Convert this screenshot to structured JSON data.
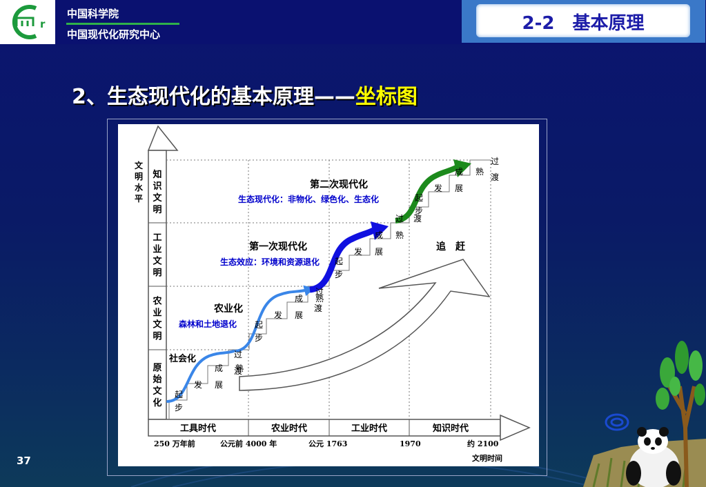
{
  "header": {
    "org_line1": "中国科学院",
    "org_line2": "中国现代化研究中心",
    "logo_letter": "r",
    "section": "2-2　基本原理"
  },
  "title": {
    "main": "2、生态现代化的基本原理——",
    "sub": "坐标图"
  },
  "diagram": {
    "y_axis_label": "文明水平",
    "x_axis_label": "文明时间",
    "levels": [
      "原始文化",
      "农业文明",
      "工业文明",
      "知识文明"
    ],
    "eras": [
      "工具时代",
      "农业时代",
      "工业时代",
      "知识时代"
    ],
    "time_marks": [
      "250 万年前",
      "公元前 4000 年",
      "公元 1763",
      "1970",
      "约 2100"
    ],
    "stages": [
      "起步",
      "发展",
      "成熟",
      "过渡"
    ],
    "stage_chars": [
      "起",
      "步",
      "发",
      "展",
      "成",
      "熟",
      "过",
      "渡"
    ],
    "phases": [
      {
        "name": "社会化",
        "effect": ""
      },
      {
        "name": "农业化",
        "effect": "森林和土地退化"
      },
      {
        "name": "第一次现代化",
        "effect": "生态效应：环境和资源退化"
      },
      {
        "name": "第二次现代化",
        "effect": "生态现代化：非物化、绿色化、生态化"
      }
    ],
    "catch_up": "追　赶",
    "colors": {
      "curve_light": "#3a86e8",
      "curve_dark": "#1010e0",
      "curve_green": "#1c8a1c",
      "effect_text": "#0000cc"
    }
  },
  "page_number": "37"
}
